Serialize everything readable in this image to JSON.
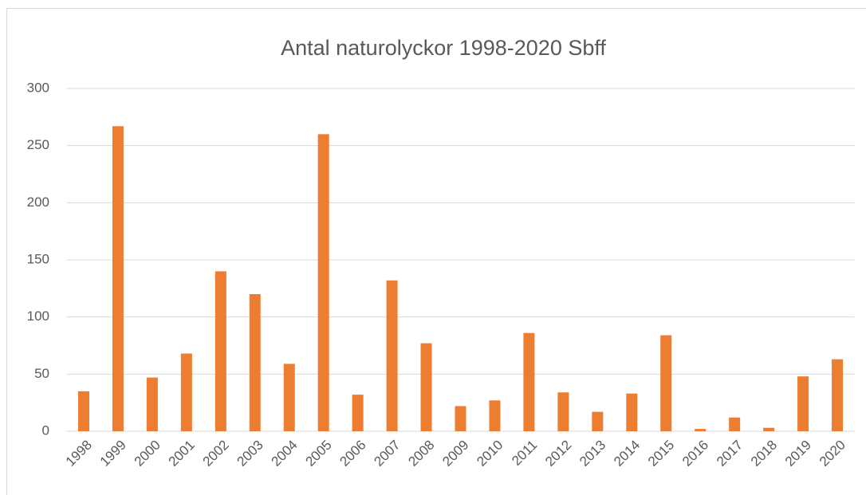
{
  "chart_data": {
    "type": "bar",
    "title": "Antal naturolyckor 1998-2020 Sbff",
    "categories": [
      "1998",
      "1999",
      "2000",
      "2001",
      "2002",
      "2003",
      "2004",
      "2005",
      "2006",
      "2007",
      "2008",
      "2009",
      "2010",
      "2011",
      "2012",
      "2013",
      "2014",
      "2015",
      "2016",
      "2017",
      "2018",
      "2019",
      "2020"
    ],
    "values": [
      35,
      267,
      47,
      68,
      140,
      120,
      59,
      260,
      32,
      132,
      77,
      22,
      27,
      86,
      34,
      17,
      33,
      84,
      2,
      12,
      3,
      48,
      63
    ],
    "color": "#ed7d31",
    "ylim": [
      0,
      300
    ],
    "yticks": [
      0,
      50,
      100,
      150,
      200,
      250,
      300
    ],
    "grid": true
  }
}
